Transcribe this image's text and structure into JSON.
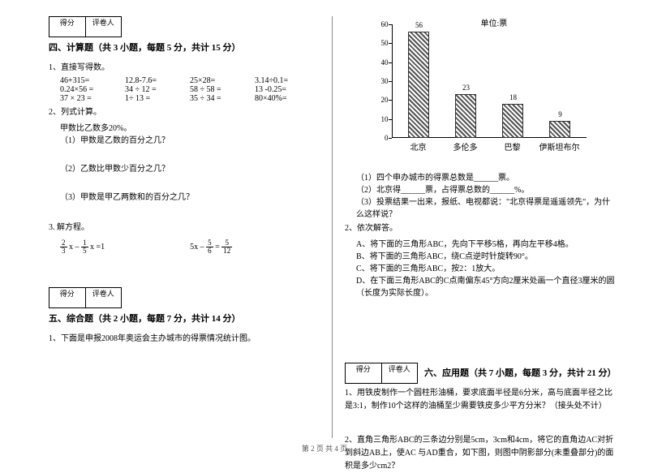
{
  "footer": "第 2 页 共 4 页",
  "scorebox": {
    "score": "得分",
    "reviewer": "评卷人"
  },
  "sec4": {
    "title": "四、计算题（共 3 小题，每题 5 分，共计 15 分）",
    "q1": "1、直接写得数。",
    "eq": {
      "r1c1": "46+315=",
      "r1c2": "12.8-7.6=",
      "r1c3": "25×28=",
      "r1c4": "3.14÷0.1=",
      "r2c1": "0.24×56 =",
      "r2c2": "34 ÷ 12 =",
      "r2c3": "58 ÷ 58 =",
      "r2c4": "13 -0.25=",
      "r3c1": "37 × 23 =",
      "r3c2": "1÷ 13 =",
      "r3c3": "35 ÷ 34 =",
      "r3c4": "80×40%="
    },
    "q2": "2、列式计算。",
    "q2a": "甲数比乙数多20%。",
    "q2a1": "（1）甲数是乙数的百分之几？",
    "q2a2": "（2）乙数比甲数少百分之几？",
    "q2a3": "（3）甲数是甲乙两数和的百分之几？",
    "q3": "3. 解方程。",
    "eq3a_n1": "2",
    "eq3a_d1": "3",
    "eq3a_mid": " x – ",
    "eq3a_n2": "1",
    "eq3a_d2": "5",
    "eq3a_tail": " x =1",
    "eq3b_pre": "5x – ",
    "eq3b_n1": "5",
    "eq3b_d1": "6",
    "eq3b_mid": " = ",
    "eq3b_n2": "5",
    "eq3b_d2": "12"
  },
  "sec5": {
    "title": "五、综合题（共 2 小题，每题 7 分，共计 14 分）",
    "q1": "1、下面是申报2008年奥运会主办城市的得票情况统计图。"
  },
  "chart": {
    "unit": "单位:票",
    "ymax": 60,
    "ytick_step": 10,
    "categories": [
      "北京",
      "多伦多",
      "巴黎",
      "伊斯坦布尔"
    ],
    "values": [
      56,
      23,
      18,
      9
    ],
    "bar_fill": "repeating-linear-gradient(45deg, #555 0 2px, #fff 2px 4px)",
    "axis_color": "#000000",
    "label_fontsize": 9
  },
  "right": {
    "q1": "（1）四个申办城市的得票总数是______票。",
    "q2": "（2）北京得______票，占得票总数的______%。",
    "q3": "（3）投票结果一出来，报纸、电视都说：\"北京得票是遥遥领先\"，为什么这样说？",
    "q2head": "2、依次解答。",
    "qa": "A、将下面的三角形ABC，先向下平移5格，再向左平移4格。",
    "qb": "B、将下面的三角形ABC，绕C点逆时针旋转90°。",
    "qc": "C、将下面的三角形ABC，按2：1放大。",
    "qd": "D、在下面三角形ABC的C点南偏东45°方向2厘米处画一个直径3厘米的圆（长度为实际长度）。"
  },
  "sec6": {
    "title": "六、应用题（共 7 小题，每题 3 分，共计 21 分）",
    "q1": "1、用铁皮制作一个圆柱形油桶，要求底面半径是6分米，高与底面半径之比是3:1，制作10个这样的油桶至少需要铁皮多少平方分米？（接头处不计）",
    "q2": "2、直角三角形ABC的三条边分别是5cm，3cm和4cm，将它的直角边AC对折到斜边AB上，使AC 与AD重合，如下图，则图中阴影部分(未重叠部分)的面积是多少cm2？"
  }
}
